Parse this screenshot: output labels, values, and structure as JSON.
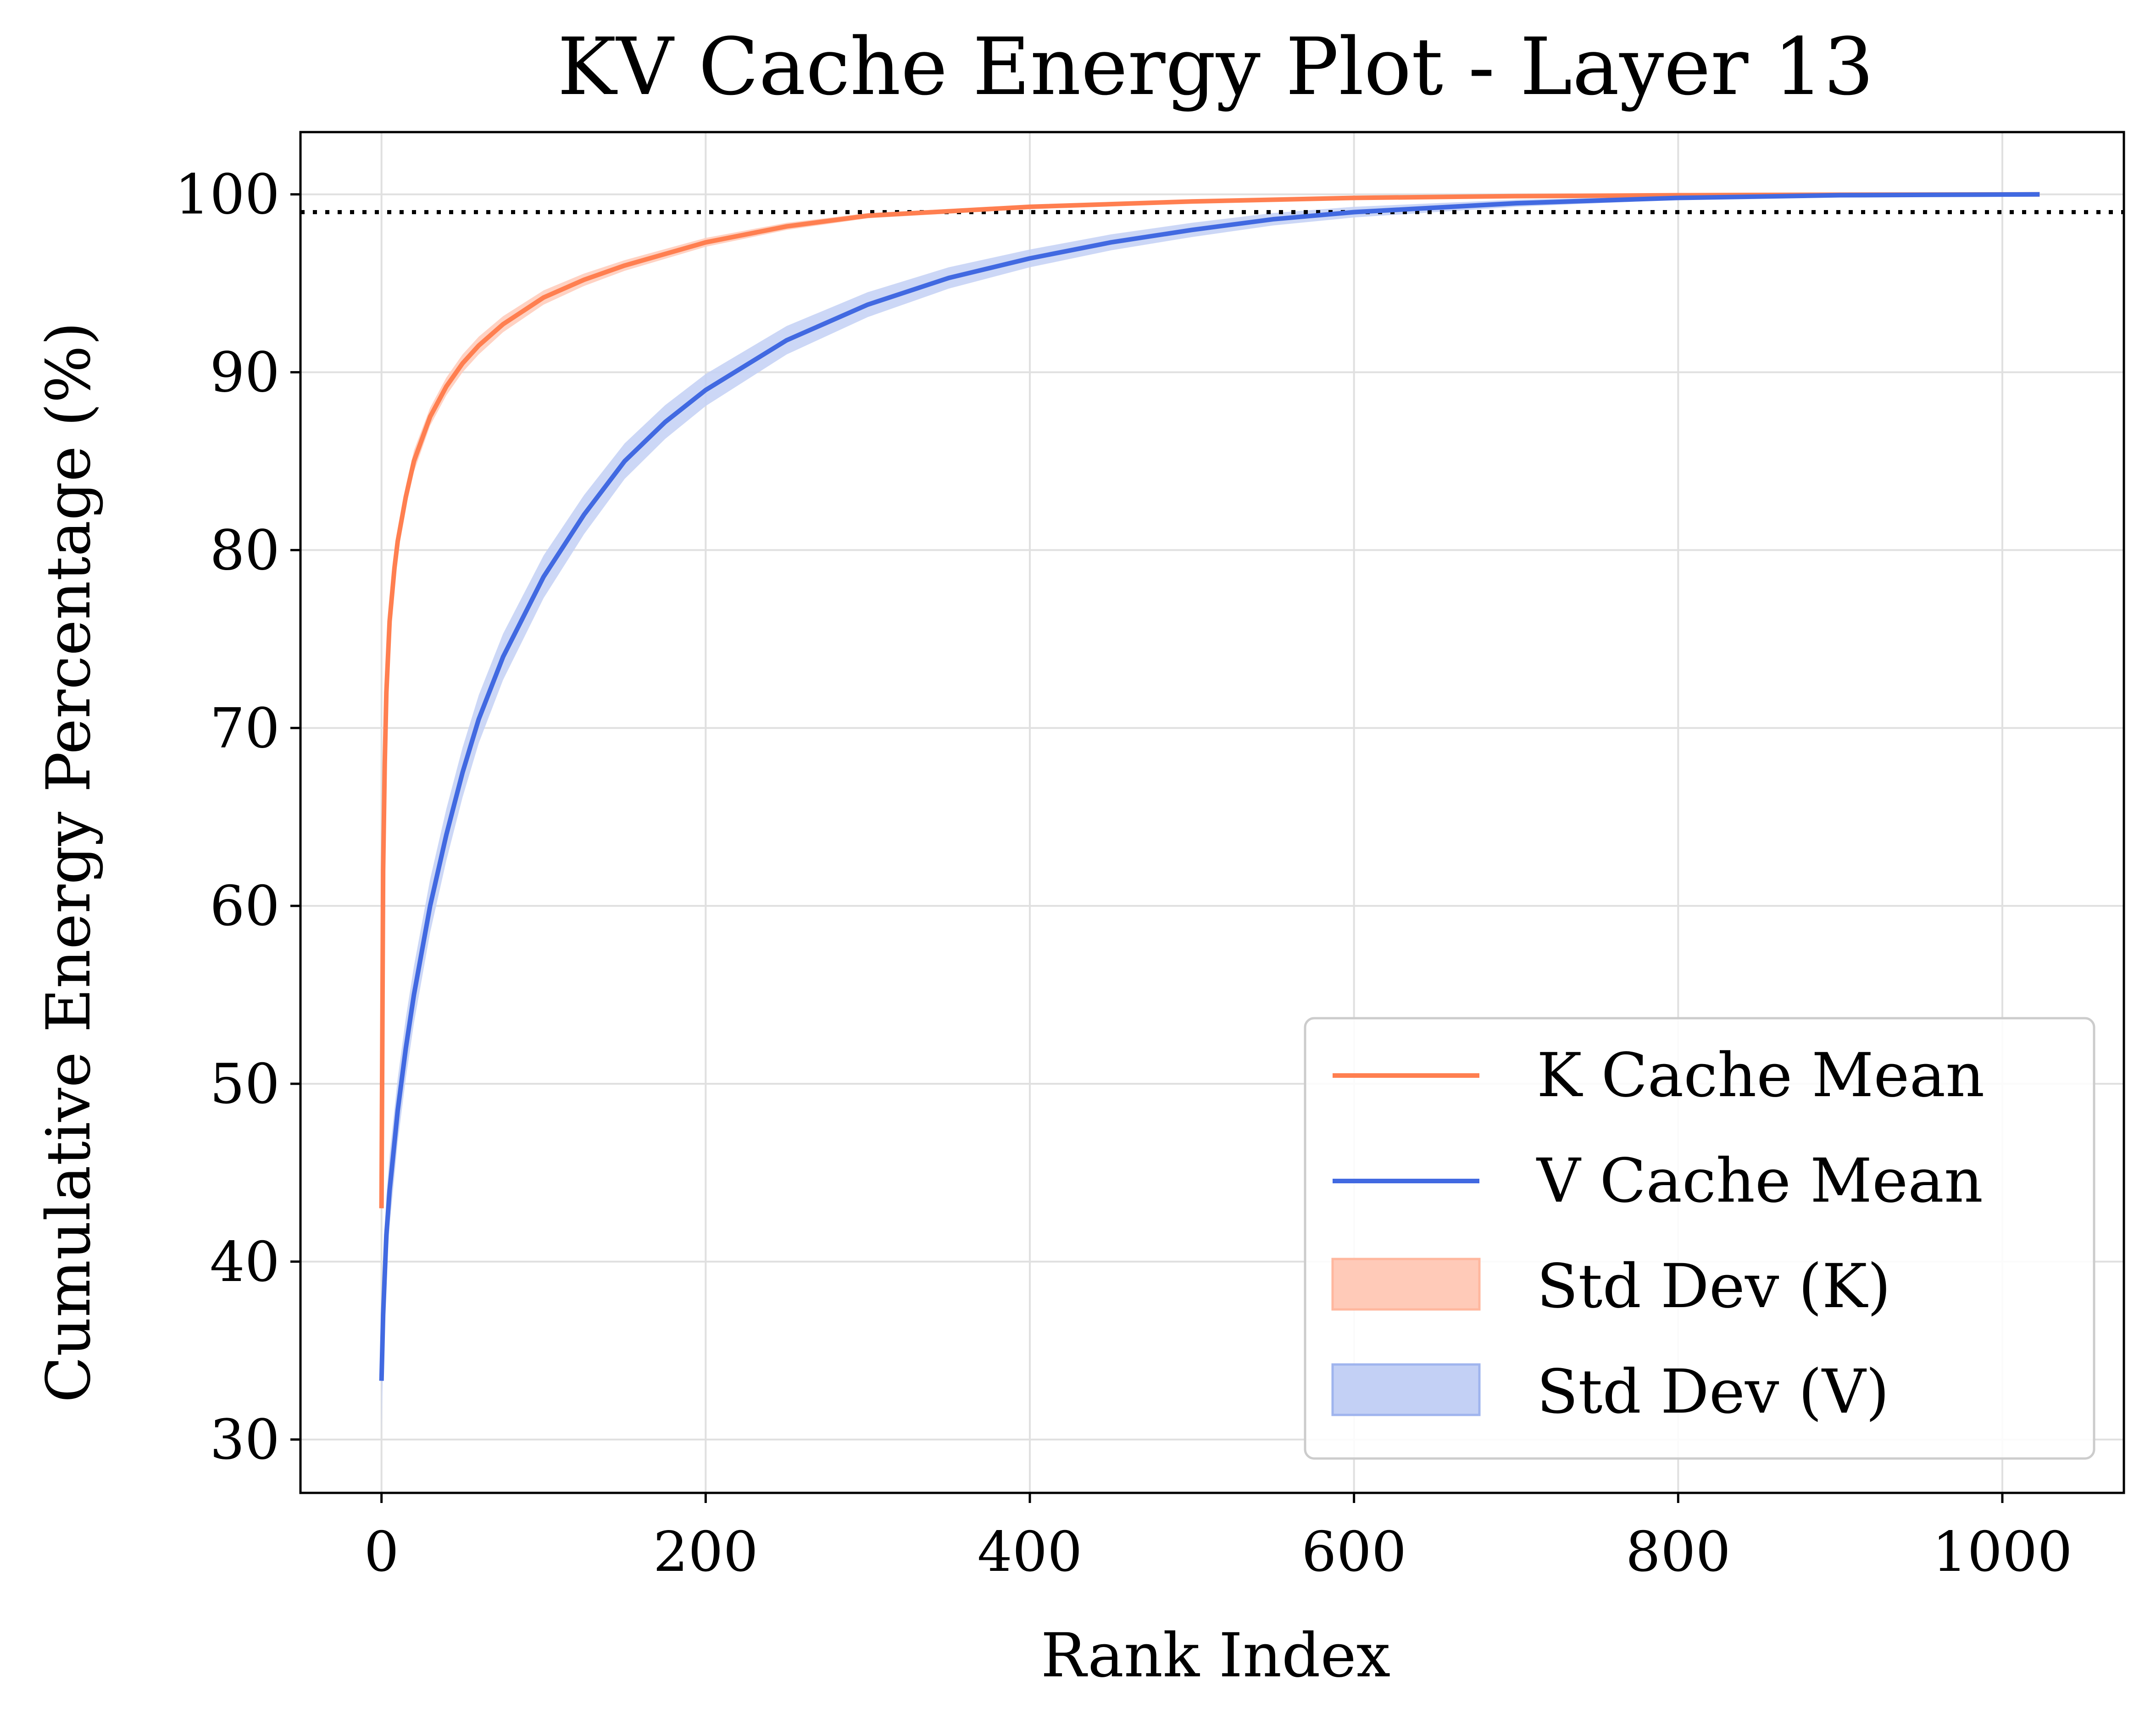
{
  "chart_data": {
    "type": "line",
    "title": "KV Cache Energy Plot - Layer 13",
    "xlabel": "Rank Index",
    "ylabel": "Cumulative Energy Percentage (%)",
    "xlim": [
      -50,
      1075
    ],
    "ylim": [
      27,
      103.5
    ],
    "xticks": [
      0,
      200,
      400,
      600,
      800,
      1000
    ],
    "yticks": [
      30,
      40,
      50,
      60,
      70,
      80,
      90,
      100
    ],
    "grid": true,
    "legend_position": "lower-right",
    "threshold_line": {
      "y": 99,
      "style": "dotted",
      "color": "#000000"
    },
    "series": [
      {
        "name": "K Cache Mean",
        "color": "#ff7f50",
        "x": [
          0,
          1,
          2,
          3,
          5,
          8,
          10,
          15,
          20,
          30,
          40,
          50,
          60,
          75,
          100,
          125,
          150,
          200,
          250,
          300,
          400,
          500,
          600,
          700,
          800,
          900,
          1023
        ],
        "values": [
          43.0,
          62.0,
          68.0,
          72.0,
          76.0,
          79.0,
          80.5,
          83.0,
          85.0,
          87.5,
          89.2,
          90.5,
          91.5,
          92.7,
          94.2,
          95.2,
          96.0,
          97.3,
          98.2,
          98.8,
          99.3,
          99.6,
          99.8,
          99.9,
          99.95,
          99.98,
          100.0
        ],
        "std": [
          0.5,
          0.8,
          0.8,
          0.8,
          0.7,
          0.7,
          0.7,
          0.6,
          0.6,
          0.5,
          0.5,
          0.5,
          0.5,
          0.45,
          0.4,
          0.35,
          0.3,
          0.25,
          0.2,
          0.15,
          0.1,
          0.08,
          0.05,
          0.03,
          0.02,
          0.01,
          0.0
        ]
      },
      {
        "name": "V Cache Mean",
        "color": "#4169e1",
        "x": [
          0,
          1,
          3,
          5,
          10,
          15,
          20,
          30,
          40,
          50,
          60,
          75,
          100,
          125,
          150,
          175,
          200,
          250,
          300,
          350,
          400,
          450,
          500,
          550,
          600,
          700,
          800,
          900,
          1023
        ],
        "values": [
          33.3,
          37.0,
          41.5,
          44.0,
          48.5,
          52.0,
          55.0,
          60.0,
          64.0,
          67.5,
          70.5,
          74.0,
          78.5,
          82.0,
          85.0,
          87.2,
          89.0,
          91.8,
          93.8,
          95.3,
          96.4,
          97.3,
          98.0,
          98.6,
          99.0,
          99.5,
          99.8,
          99.95,
          100.0
        ],
        "std": [
          3.0,
          2.5,
          2.2,
          2.0,
          1.8,
          1.7,
          1.6,
          1.5,
          1.45,
          1.4,
          1.35,
          1.3,
          1.2,
          1.1,
          1.0,
          0.95,
          0.9,
          0.8,
          0.7,
          0.6,
          0.5,
          0.45,
          0.4,
          0.35,
          0.3,
          0.2,
          0.1,
          0.05,
          0.0
        ]
      }
    ],
    "bands": [
      {
        "name": "Std Dev (K)",
        "color": "#ffcab8",
        "of": "K Cache Mean"
      },
      {
        "name": "Std Dev (V)",
        "color": "#c3d0f5",
        "of": "V Cache Mean"
      }
    ]
  }
}
